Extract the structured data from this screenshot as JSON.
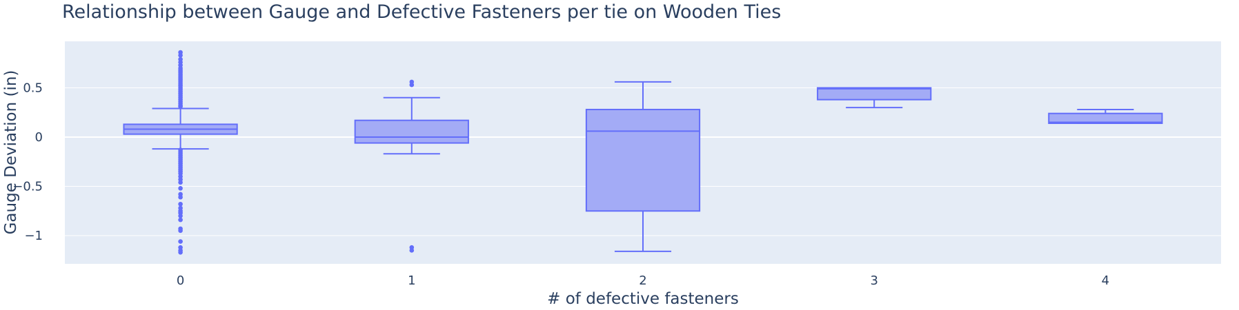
{
  "chart_data": {
    "type": "box",
    "title": "Relationship between Gauge and Defective Fasteners per tie on Wooden Ties",
    "xlabel": "# of defective fasteners",
    "ylabel": "Gauge Deviation (in)",
    "ylim": [
      -1.3,
      0.95
    ],
    "yticks": [
      {
        "value": 0.5,
        "label": "0.5"
      },
      {
        "value": 0,
        "label": "0"
      },
      {
        "value": -0.5,
        "label": "−0.5"
      },
      {
        "value": -1,
        "label": "−1"
      }
    ],
    "grid": true,
    "colors": {
      "fill": "#a3abf6",
      "line": "#636efa",
      "plot_bg": "#e5ecf6",
      "text": "#2a3f5f",
      "grid": "#ffffff"
    },
    "categories": [
      "0",
      "1",
      "2",
      "3",
      "4"
    ],
    "boxes": [
      {
        "category": "0",
        "q1": 0.03,
        "median": 0.08,
        "q3": 0.13,
        "lower_whisker": -0.12,
        "upper_whisker": 0.29,
        "outliers": [
          0.86,
          0.83,
          0.79,
          0.76,
          0.73,
          0.7,
          0.68,
          0.66,
          0.64,
          0.62,
          0.6,
          0.58,
          0.56,
          0.54,
          0.52,
          0.5,
          0.48,
          0.46,
          0.44,
          0.42,
          0.4,
          0.38,
          0.36,
          0.34,
          0.32,
          0.31,
          -0.13,
          -0.15,
          -0.17,
          -0.19,
          -0.21,
          -0.23,
          -0.25,
          -0.27,
          -0.29,
          -0.31,
          -0.33,
          -0.35,
          -0.37,
          -0.4,
          -0.43,
          -0.46,
          -0.52,
          -0.58,
          -0.61,
          -0.68,
          -0.72,
          -0.75,
          -0.77,
          -0.8,
          -0.84,
          -0.93,
          -0.95,
          -1.06,
          -1.12,
          -1.15,
          -1.17
        ]
      },
      {
        "category": "1",
        "q1": -0.06,
        "median": 0.0,
        "q3": 0.17,
        "lower_whisker": -0.17,
        "upper_whisker": 0.4,
        "outliers": [
          0.56,
          0.53,
          -1.12,
          -1.15
        ]
      },
      {
        "category": "2",
        "q1": -0.75,
        "median": 0.06,
        "q3": 0.28,
        "lower_whisker": -1.16,
        "upper_whisker": 0.56,
        "outliers": []
      },
      {
        "category": "3",
        "q1": 0.38,
        "median": 0.49,
        "q3": 0.5,
        "lower_whisker": 0.3,
        "upper_whisker": 0.5,
        "outliers": []
      },
      {
        "category": "4",
        "q1": 0.14,
        "median": 0.15,
        "q3": 0.24,
        "lower_whisker": 0.14,
        "upper_whisker": 0.28,
        "outliers": []
      }
    ]
  }
}
